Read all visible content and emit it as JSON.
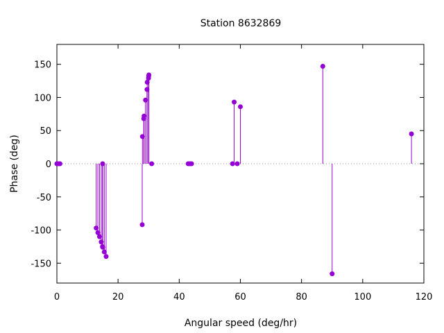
{
  "chart_data": {
    "type": "scatter",
    "style": "impulses-with-points",
    "title": "Station 8632869",
    "xlabel": "Angular speed (deg/hr)",
    "ylabel": "Phase (deg)",
    "xlim": [
      0,
      120
    ],
    "ylim": [
      -180,
      180
    ],
    "xticks": [
      0,
      20,
      40,
      60,
      80,
      100,
      120
    ],
    "yticks": [
      -150,
      -100,
      -50,
      0,
      50,
      100,
      150
    ],
    "zero_line": "dotted",
    "grid": false,
    "legend": "none",
    "color": "#9400d3",
    "series": [
      {
        "points": [
          [
            0.0,
            0
          ],
          [
            0.04,
            0
          ],
          [
            0.08,
            0
          ],
          [
            0.5,
            0
          ],
          [
            1.0,
            0
          ],
          [
            12.85,
            -97
          ],
          [
            13.4,
            -104
          ],
          [
            13.94,
            -110
          ],
          [
            14.5,
            -118
          ],
          [
            14.9,
            -125
          ],
          [
            14.96,
            0
          ],
          [
            15.0,
            -126
          ],
          [
            15.5,
            -133
          ],
          [
            16.1,
            -140
          ],
          [
            27.9,
            -92
          ],
          [
            27.97,
            41
          ],
          [
            28.4,
            68
          ],
          [
            28.51,
            72
          ],
          [
            28.98,
            96
          ],
          [
            29.46,
            112
          ],
          [
            29.53,
            123
          ],
          [
            29.96,
            129
          ],
          [
            30.0,
            132
          ],
          [
            30.08,
            134
          ],
          [
            31.0,
            0
          ],
          [
            42.93,
            0
          ],
          [
            43.48,
            0
          ],
          [
            44.03,
            0
          ],
          [
            57.42,
            0
          ],
          [
            57.97,
            93
          ],
          [
            58.98,
            0
          ],
          [
            60.0,
            86
          ],
          [
            86.95,
            147
          ],
          [
            90.0,
            -166
          ],
          [
            115.94,
            45
          ]
        ]
      }
    ]
  }
}
